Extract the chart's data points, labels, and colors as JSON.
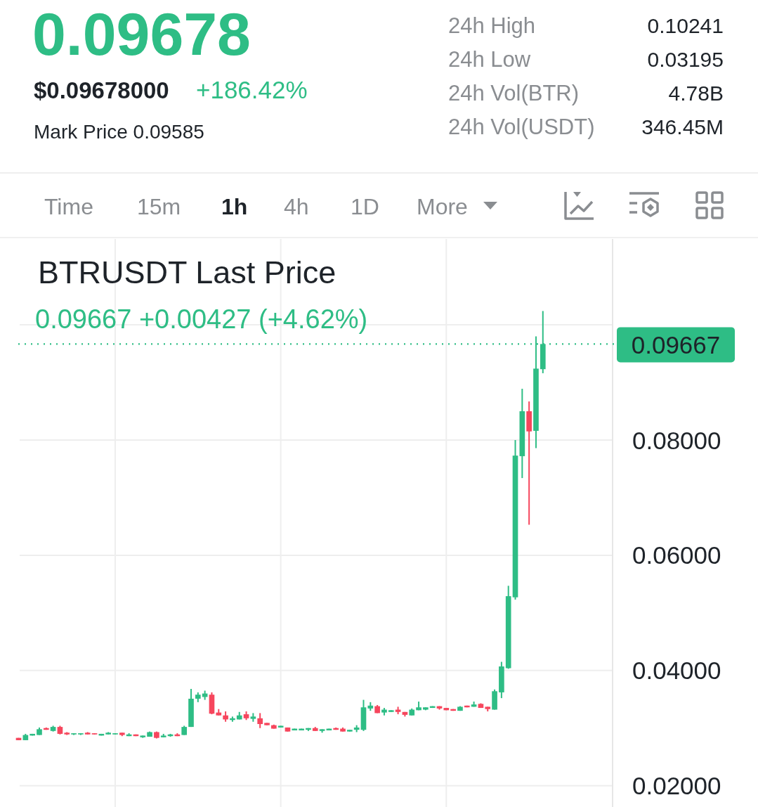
{
  "chart_data": {
    "type": "candlestick",
    "title": "BTRUSDT Last Price",
    "subtitle": "0.09667 +0.00427 (+4.62%)",
    "annotations": [
      "0.09678",
      "$0.09678000",
      "+186.42%",
      "Mark Price 0.09585",
      "24h High",
      "0.10241",
      "24h Low",
      "0.03195",
      "24h Vol(BTR)",
      "4.78B",
      "24h Vol(USDT)",
      "346.45M",
      "Time",
      "15m",
      "1h",
      "4h",
      "1D",
      "More"
    ],
    "categories": [
      null,
      null,
      null,
      null,
      null,
      null,
      null,
      null,
      null,
      null,
      null,
      null,
      null,
      null,
      null,
      null,
      null,
      null,
      null,
      null,
      null,
      null,
      null,
      null,
      null,
      null,
      null,
      null,
      null,
      null,
      null,
      null,
      null,
      null,
      null,
      null,
      null,
      null,
      null,
      null,
      null,
      null,
      null,
      null,
      null,
      null,
      null,
      null,
      null,
      null,
      null,
      null,
      null,
      null,
      null,
      null,
      null,
      null,
      null,
      null,
      null,
      null,
      null,
      null,
      null,
      null,
      null,
      null,
      null,
      null,
      null,
      null,
      null,
      null,
      null,
      null,
      null
    ],
    "ohlc": [
      [
        0.0283,
        0.0283,
        0.0279,
        0.0279
      ],
      [
        0.0279,
        0.029,
        0.0279,
        0.0288
      ],
      [
        0.0287,
        0.029,
        0.0287,
        0.029
      ],
      [
        0.0288,
        0.0301,
        0.0288,
        0.0298
      ],
      [
        0.03,
        0.0301,
        0.0297,
        0.0297
      ],
      [
        0.0295,
        0.0304,
        0.0294,
        0.0302
      ],
      [
        0.0302,
        0.0304,
        0.0289,
        0.029
      ],
      [
        0.0292,
        0.0293,
        0.0288,
        0.0289
      ],
      [
        0.0289,
        0.0291,
        0.0288,
        0.0291
      ],
      [
        0.0289,
        0.0291,
        0.0288,
        0.0291
      ],
      [
        0.0292,
        0.0293,
        0.0289,
        0.0289
      ],
      [
        0.0291,
        0.0291,
        0.0289,
        0.0289
      ],
      [
        0.0287,
        0.029,
        0.0287,
        0.029
      ],
      [
        0.0289,
        0.0293,
        0.0289,
        0.0292
      ],
      [
        0.0289,
        0.0291,
        0.0289,
        0.0291
      ],
      [
        0.0292,
        0.0292,
        0.0286,
        0.0288
      ],
      [
        0.0286,
        0.0291,
        0.0286,
        0.0289
      ],
      [
        0.0289,
        0.0289,
        0.0286,
        0.0286
      ],
      [
        0.0284,
        0.0287,
        0.0283,
        0.0287
      ],
      [
        0.0285,
        0.0294,
        0.0285,
        0.0293
      ],
      [
        0.0293,
        0.0294,
        0.0282,
        0.0283
      ],
      [
        0.0284,
        0.029,
        0.0284,
        0.0287
      ],
      [
        0.0286,
        0.029,
        0.0285,
        0.0289
      ],
      [
        0.0289,
        0.0291,
        0.0286,
        0.0286
      ],
      [
        0.0288,
        0.0304,
        0.0288,
        0.0302
      ],
      [
        0.0302,
        0.0368,
        0.0302,
        0.0351
      ],
      [
        0.0351,
        0.0362,
        0.0345,
        0.0358
      ],
      [
        0.0354,
        0.0365,
        0.0349,
        0.036
      ],
      [
        0.0358,
        0.0362,
        0.0324,
        0.0325
      ],
      [
        0.0327,
        0.0333,
        0.0322,
        0.0322
      ],
      [
        0.0322,
        0.0329,
        0.0311,
        0.0315
      ],
      [
        0.0314,
        0.032,
        0.0311,
        0.0317
      ],
      [
        0.0315,
        0.0328,
        0.0315,
        0.0322
      ],
      [
        0.0324,
        0.0329,
        0.0314,
        0.0317
      ],
      [
        0.0316,
        0.0326,
        0.0311,
        0.032
      ],
      [
        0.0317,
        0.0326,
        0.03,
        0.0307
      ],
      [
        0.0309,
        0.0309,
        0.0305,
        0.0305
      ],
      [
        0.0305,
        0.0306,
        0.0299,
        0.0299
      ],
      [
        0.0301,
        0.0304,
        0.0301,
        0.0304
      ],
      [
        0.0301,
        0.0301,
        0.0294,
        0.0294
      ],
      [
        0.0296,
        0.0299,
        0.0296,
        0.0299
      ],
      [
        0.0296,
        0.0299,
        0.0296,
        0.0299
      ],
      [
        0.0297,
        0.03,
        0.0295,
        0.03
      ],
      [
        0.03,
        0.0302,
        0.0295,
        0.0295
      ],
      [
        0.0295,
        0.0298,
        0.0292,
        0.0298
      ],
      [
        0.0296,
        0.0299,
        0.0296,
        0.0299
      ],
      [
        0.03,
        0.0301,
        0.0297,
        0.0297
      ],
      [
        0.0299,
        0.0301,
        0.0294,
        0.0294
      ],
      [
        0.0294,
        0.0297,
        0.0294,
        0.0297
      ],
      [
        0.0297,
        0.0305,
        0.0293,
        0.0301
      ],
      [
        0.0297,
        0.0349,
        0.0295,
        0.0336
      ],
      [
        0.0334,
        0.0345,
        0.033,
        0.0339
      ],
      [
        0.0338,
        0.034,
        0.0326,
        0.0326
      ],
      [
        0.0327,
        0.0335,
        0.0322,
        0.0332
      ],
      [
        0.0328,
        0.0331,
        0.0328,
        0.0331
      ],
      [
        0.0332,
        0.0337,
        0.0324,
        0.0328
      ],
      [
        0.0328,
        0.0328,
        0.032,
        0.0323
      ],
      [
        0.0322,
        0.0334,
        0.0322,
        0.0332
      ],
      [
        0.0331,
        0.0346,
        0.0331,
        0.0336
      ],
      [
        0.0332,
        0.0336,
        0.0331,
        0.0336
      ],
      [
        0.0335,
        0.0338,
        0.0335,
        0.0338
      ],
      [
        0.0338,
        0.0338,
        0.0332,
        0.0334
      ],
      [
        0.0335,
        0.0335,
        0.0331,
        0.0331
      ],
      [
        0.0333,
        0.0333,
        0.033,
        0.033
      ],
      [
        0.033,
        0.0338,
        0.033,
        0.0337
      ],
      [
        0.0339,
        0.0339,
        0.0336,
        0.0336
      ],
      [
        0.0337,
        0.0346,
        0.0337,
        0.0341
      ],
      [
        0.0342,
        0.0343,
        0.0335,
        0.0335
      ],
      [
        0.0337,
        0.0337,
        0.0329,
        0.0333
      ],
      [
        0.0332,
        0.0367,
        0.0332,
        0.0364
      ],
      [
        0.0362,
        0.0415,
        0.0352,
        0.0407
      ],
      [
        0.0404,
        0.0547,
        0.0403,
        0.0529
      ],
      [
        0.0527,
        0.08,
        0.0523,
        0.0773
      ],
      [
        0.0772,
        0.0889,
        0.0734,
        0.085
      ],
      [
        0.085,
        0.0867,
        0.0653,
        0.0815
      ],
      [
        0.0816,
        0.098,
        0.0786,
        0.0924
      ],
      [
        0.0923,
        0.1024,
        0.0916,
        0.09667
      ]
    ],
    "colors": [
      "#f6465d",
      "#2ebd85",
      "#2ebd85",
      "#2ebd85",
      "#f6465d",
      "#2ebd85",
      "#f6465d",
      "#f6465d",
      "#2ebd85",
      "#2ebd85",
      "#f6465d",
      "#f6465d",
      "#2ebd85",
      "#2ebd85",
      "#2ebd85",
      "#f6465d",
      "#2ebd85",
      "#f6465d",
      "#2ebd85",
      "#2ebd85",
      "#f6465d",
      "#2ebd85",
      "#2ebd85",
      "#f6465d",
      "#2ebd85",
      "#2ebd85",
      "#2ebd85",
      "#2ebd85",
      "#f6465d",
      "#f6465d",
      "#f6465d",
      "#2ebd85",
      "#2ebd85",
      "#f6465d",
      "#2ebd85",
      "#f6465d",
      "#f6465d",
      "#f6465d",
      "#2ebd85",
      "#f6465d",
      "#2ebd85",
      "#2ebd85",
      "#2ebd85",
      "#f6465d",
      "#2ebd85",
      "#2ebd85",
      "#f6465d",
      "#f6465d",
      "#2ebd85",
      "#2ebd85",
      "#2ebd85",
      "#2ebd85",
      "#f6465d",
      "#2ebd85",
      "#2ebd85",
      "#f6465d",
      "#f6465d",
      "#2ebd85",
      "#2ebd85",
      "#2ebd85",
      "#2ebd85",
      "#f6465d",
      "#f6465d",
      "#f6465d",
      "#2ebd85",
      "#f6465d",
      "#2ebd85",
      "#f6465d",
      "#f6465d",
      "#2ebd85",
      "#2ebd85",
      "#2ebd85",
      "#2ebd85",
      "#2ebd85",
      "#f6465d",
      "#2ebd85",
      "#2ebd85"
    ],
    "ylim": [
      0.0163,
      0.1149
    ],
    "yticks": [
      {
        "value": 0.02,
        "label": "0.02000"
      },
      {
        "value": 0.04,
        "label": "0.04000"
      },
      {
        "value": 0.06,
        "label": "0.06000"
      },
      {
        "value": 0.08,
        "label": "0.08000"
      },
      {
        "value": 0.1,
        "label": null
      }
    ],
    "grid": true,
    "ref_lines": [
      {
        "axis": "y",
        "value": 0.09667,
        "label": "0.09667",
        "color": "#2ebd85",
        "line_style": "dotted"
      }
    ]
  }
}
